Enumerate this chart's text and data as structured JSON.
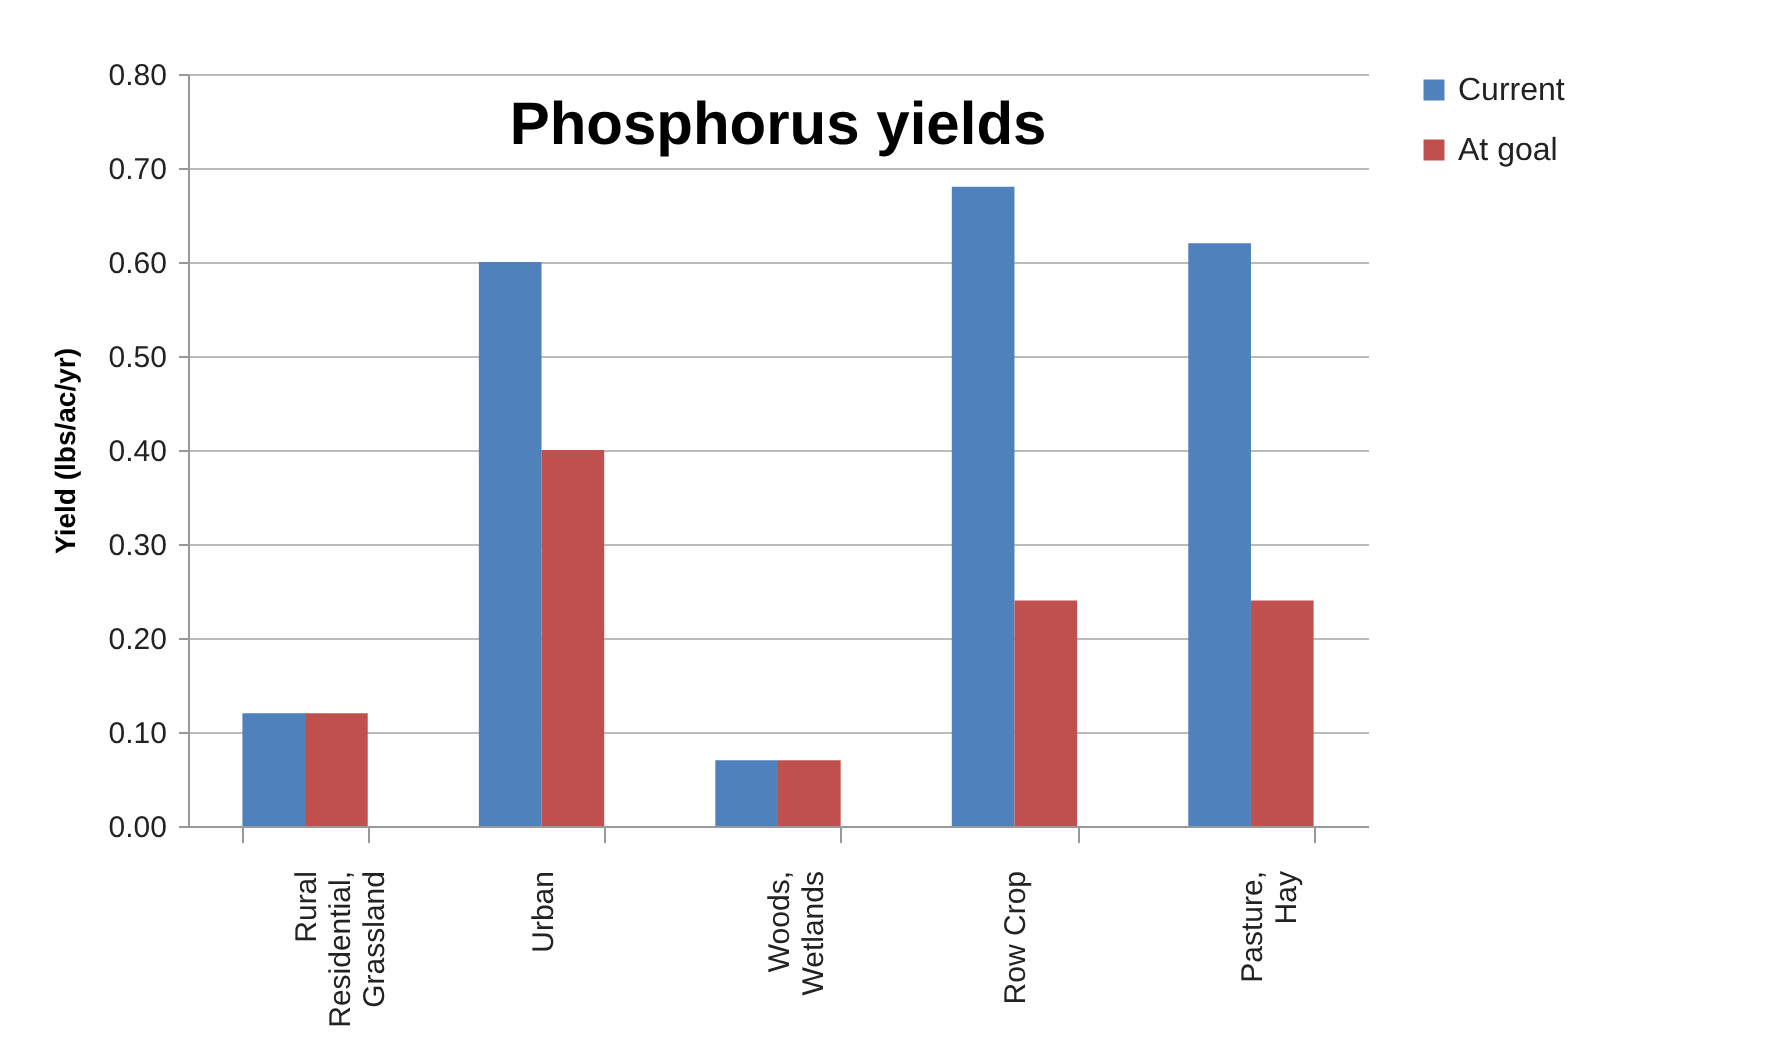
{
  "chart_data": {
    "type": "bar",
    "title": "Phosphorus yields",
    "ylabel": "Yield (lbs/ac/yr)",
    "categories": [
      "Rural Residential, Grassland",
      "Urban",
      "Woods, Wetlands",
      "Row Crop",
      "Pasture, Hay"
    ],
    "series": [
      {
        "name": "Current",
        "color": "#4f81bd",
        "values": [
          0.12,
          0.6,
          0.07,
          0.68,
          0.62
        ]
      },
      {
        "name": "At goal",
        "color": "#c0504d",
        "values": [
          0.12,
          0.4,
          0.07,
          0.24,
          0.24
        ]
      }
    ],
    "ylim": [
      0,
      0.8
    ],
    "yticks": [
      {
        "value": 0,
        "label": "0.00"
      },
      {
        "value": 0.1,
        "label": "0.10"
      },
      {
        "value": 0.2,
        "label": "0.20"
      },
      {
        "value": 0.3,
        "label": "0.30"
      },
      {
        "value": 0.4,
        "label": "0.40"
      },
      {
        "value": 0.5,
        "label": "0.50"
      },
      {
        "value": 0.6,
        "label": "0.60"
      },
      {
        "value": 0.7,
        "label": "0.70"
      },
      {
        "value": 0.8,
        "label": "0.80"
      }
    ],
    "grid": "y",
    "legend": "right"
  }
}
